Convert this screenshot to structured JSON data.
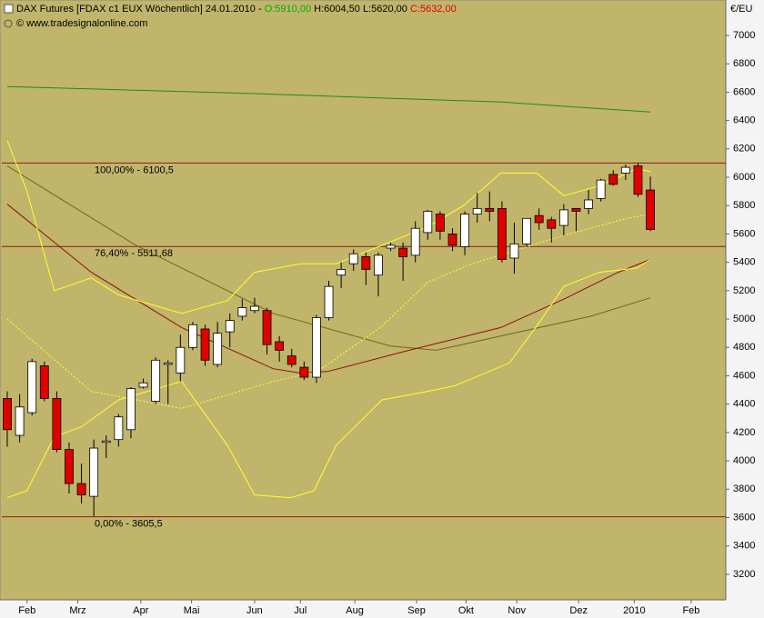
{
  "chart_data": {
    "type": "candlestick",
    "title": "DAX Futures [FDAX c1 EUX  Wöchentlich] 24.01.2010 -",
    "quote": [
      {
        "text": "O:5910,00",
        "color": "#00b000"
      },
      {
        "text": "H:6004,50 L:5620,00",
        "color": "#000000"
      },
      {
        "text": "C:5632,00",
        "color": "#e00000"
      }
    ],
    "source": "© www.tradesignalonline.com",
    "y_unit": "€/EU",
    "up_color": "#ffffff",
    "down_color": "#e00000",
    "open": [
      4440,
      4180,
      4340,
      4670,
      4440,
      4080,
      3840,
      3750,
      4130,
      4150,
      4220,
      4520,
      4420,
      4680,
      4620,
      4800,
      4930,
      4680,
      4910,
      5020,
      5060,
      5060,
      4840,
      4740,
      4660,
      4590,
      5010,
      5310,
      5390,
      5440,
      5310,
      5500,
      5500,
      5450,
      5610,
      5740,
      5600,
      5510,
      5740,
      5780,
      5780,
      5430,
      5530,
      5730,
      5700,
      5660,
      5780,
      5780,
      5850,
      6020,
      6030,
      6080,
      5910
    ],
    "high": [
      4490,
      4470,
      4720,
      4700,
      4490,
      4130,
      3980,
      4150,
      4180,
      4330,
      4520,
      4580,
      4730,
      4710,
      4890,
      4980,
      4960,
      4980,
      5040,
      5140,
      5150,
      5080,
      4880,
      4790,
      4700,
      5030,
      5270,
      5400,
      5490,
      5470,
      5470,
      5540,
      5540,
      5690,
      5770,
      5760,
      5640,
      5760,
      5890,
      5900,
      5830,
      5680,
      5710,
      5780,
      5720,
      5810,
      5780,
      5910,
      5990,
      6050,
      6090,
      6100,
      6004.5
    ],
    "low": [
      4100,
      4130,
      4320,
      4420,
      4060,
      3770,
      3700,
      3610,
      4020,
      4100,
      4160,
      4510,
      4400,
      4400,
      4560,
      4780,
      4670,
      4660,
      4800,
      4990,
      5040,
      4750,
      4700,
      4660,
      4570,
      4550,
      4990,
      5220,
      5340,
      5240,
      5160,
      5480,
      5270,
      5400,
      5560,
      5560,
      5480,
      5450,
      5680,
      5690,
      5400,
      5320,
      5510,
      5630,
      5540,
      5590,
      5620,
      5740,
      5830,
      5940,
      5980,
      5860,
      5620
    ],
    "close": [
      4220,
      4380,
      4700,
      4440,
      4080,
      3840,
      3760,
      4090,
      4140,
      4310,
      4510,
      4550,
      4710,
      4690,
      4800,
      4960,
      4710,
      4900,
      4990,
      5080,
      5090,
      4820,
      4780,
      4680,
      4590,
      5010,
      5230,
      5350,
      5460,
      5350,
      5450,
      5520,
      5440,
      5640,
      5760,
      5620,
      5520,
      5740,
      5780,
      5760,
      5420,
      5530,
      5710,
      5680,
      5640,
      5770,
      5760,
      5840,
      5980,
      5950,
      6070,
      5880,
      5632
    ],
    "lines": [
      {
        "color": "#1e8c1e",
        "dash": false,
        "x": [
          0,
          20,
          40,
          52
        ],
        "values": [
          6640,
          6590,
          6530,
          6460
        ]
      },
      {
        "color": "#6b6b10",
        "dash": false,
        "x": [
          0,
          10.4,
          21.5,
          31,
          34.7,
          39.9,
          47.2,
          52
        ],
        "values": [
          6080,
          5520,
          5040,
          4810,
          4780,
          4880,
          5020,
          5150
        ]
      },
      {
        "color": "#8b1010",
        "dash": false,
        "x": [
          0,
          6.8,
          14.1,
          21.5,
          23.7,
          25.9,
          32.5,
          39.9,
          45,
          49.4,
          52
        ],
        "values": [
          5810,
          5330,
          4940,
          4650,
          4620,
          4630,
          4780,
          4940,
          5140,
          5330,
          5420
        ]
      },
      {
        "color": "#ffff30",
        "dash": false,
        "x": [
          0,
          1.6,
          3.8,
          6.8,
          9,
          14.1,
          17.8,
          20,
          23.7,
          26.6,
          30.3,
          34,
          36.9,
          39.9,
          42.8,
          45,
          47.9,
          50.9,
          52
        ],
        "values": [
          6260,
          5900,
          5200,
          5290,
          5170,
          5040,
          5130,
          5330,
          5390,
          5390,
          5520,
          5650,
          5800,
          6030,
          6030,
          5870,
          5940,
          6060,
          6040
        ]
      },
      {
        "color": "#ffff30",
        "dash": false,
        "x": [
          0,
          1.6,
          3.8,
          6,
          9,
          14.1,
          17.8,
          20,
          22.9,
          24.8,
          26.6,
          30.3,
          34,
          36.2,
          40.6,
          42.8,
          45,
          47.9,
          50.9,
          52
        ],
        "values": [
          3740,
          3790,
          4170,
          4240,
          4430,
          4560,
          4110,
          3760,
          3740,
          3790,
          4110,
          4430,
          4490,
          4530,
          4690,
          4950,
          5230,
          5330,
          5360,
          5420
        ]
      },
      {
        "color": "#ffff30",
        "dash": true,
        "x": [
          0,
          6.8,
          14.1,
          21.5,
          25.1,
          30.3,
          34,
          37.6,
          41.3,
          45,
          50.1,
          52
        ],
        "values": [
          5000,
          4490,
          4370,
          4560,
          4630,
          4950,
          5260,
          5390,
          5490,
          5590,
          5710,
          5740
        ]
      }
    ],
    "levels": [
      {
        "value": 6100.5,
        "label": "100,00% - 6100,5"
      },
      {
        "value": 5511.68,
        "label": "76,40% - 5511,68"
      },
      {
        "value": 3605.5,
        "label": "0,00% - 3605,5"
      }
    ],
    "level_color": "#8b1a1a",
    "xlim": [
      -0.44,
      58.1
    ],
    "xticks": [
      {
        "value": 1.6,
        "label": "Feb"
      },
      {
        "value": 5.7,
        "label": "Mrz"
      },
      {
        "value": 10.8,
        "label": "Apr"
      },
      {
        "value": 14.9,
        "label": "Mai"
      },
      {
        "value": 20,
        "label": "Jun"
      },
      {
        "value": 23.7,
        "label": "Jul"
      },
      {
        "value": 28.1,
        "label": "Aug"
      },
      {
        "value": 33.1,
        "label": "Sep"
      },
      {
        "value": 37.1,
        "label": "Okt"
      },
      {
        "value": 41.2,
        "label": "Nov"
      },
      {
        "value": 46.2,
        "label": "Dez"
      },
      {
        "value": 50.7,
        "label": "2010"
      },
      {
        "value": 55.3,
        "label": "Feb"
      }
    ],
    "ylim": [
      3020,
      7250
    ],
    "yticks": [
      3200,
      3400,
      3600,
      3800,
      4000,
      4200,
      4400,
      4600,
      4800,
      5000,
      5200,
      5400,
      5600,
      5800,
      6000,
      6200,
      6400,
      6600,
      6800,
      7000
    ]
  }
}
